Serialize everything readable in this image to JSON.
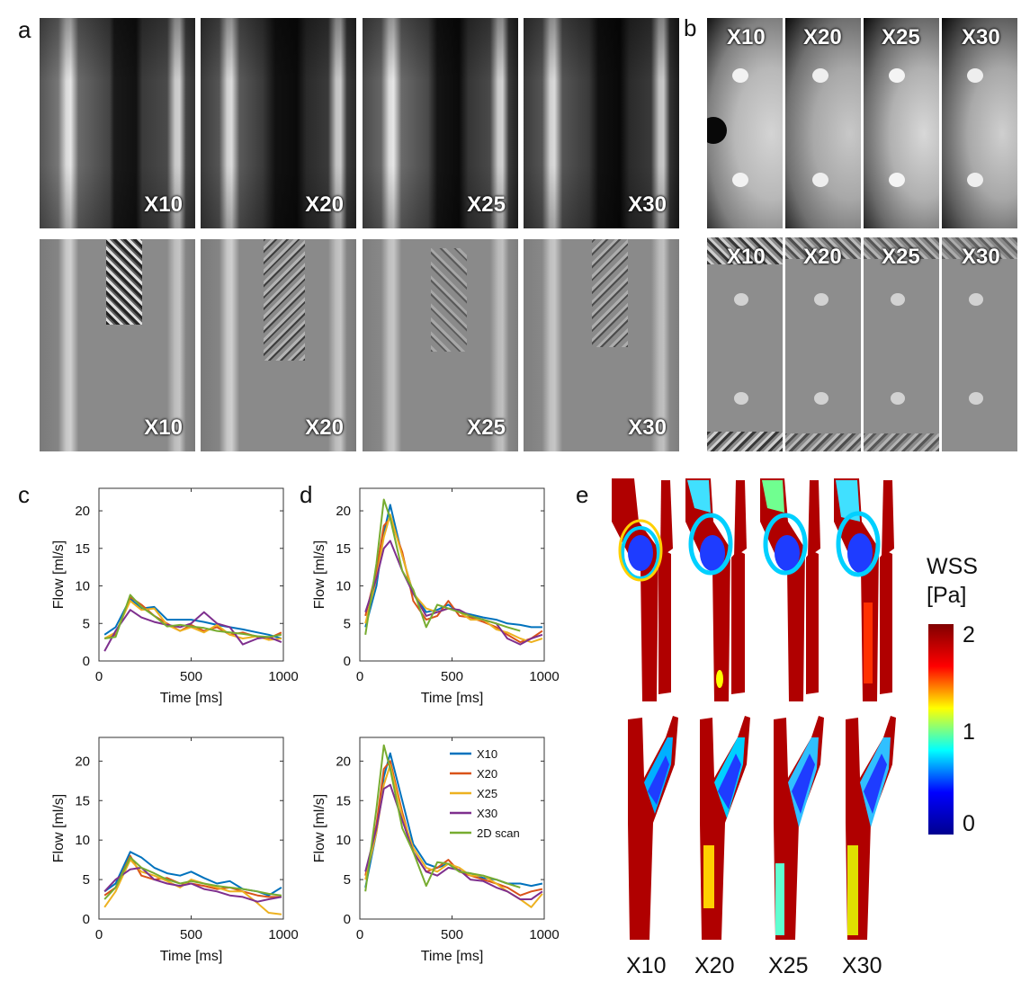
{
  "panels": {
    "a": "a",
    "b": "b",
    "c": "c",
    "d": "d",
    "e": "e"
  },
  "scan_labels": [
    "X10",
    "X20",
    "X25",
    "X30"
  ],
  "legend": [
    "X10",
    "X20",
    "X25",
    "X30",
    "2D scan"
  ],
  "series_colors": [
    "#0072BD",
    "#D95319",
    "#EDB120",
    "#7E2F8E",
    "#77AC30"
  ],
  "colorbar": {
    "title_line1": "WSS",
    "title_line2": "[Pa]",
    "ticks": [
      "2",
      "1",
      "0"
    ],
    "colors": [
      "#800000",
      "#ff0000",
      "#ffff00",
      "#00ffff",
      "#0000ff",
      "#00008f"
    ]
  },
  "chart_data": [
    {
      "id": "c-top",
      "type": "line",
      "xlabel": "Time [ms]",
      "ylabel": "Flow [ml/s]",
      "xlim": [
        0,
        1000
      ],
      "ylim": [
        0,
        23
      ],
      "xticks": [
        "0",
        "500",
        "1000"
      ],
      "yticks": [
        "0",
        "5",
        "10",
        "15",
        "20"
      ],
      "x": [
        30,
        90,
        170,
        230,
        300,
        370,
        440,
        500,
        570,
        640,
        710,
        780,
        860,
        920,
        990
      ],
      "series": [
        {
          "name": "X10",
          "values": [
            3.5,
            4.5,
            8.3,
            7.0,
            7.2,
            5.5,
            5.5,
            5.5,
            5.2,
            4.8,
            4.5,
            4.2,
            3.8,
            3.5,
            3.0
          ]
        },
        {
          "name": "X20",
          "values": [
            3.0,
            3.5,
            8.5,
            7.5,
            6.0,
            5.0,
            4.0,
            4.8,
            4.0,
            4.5,
            3.5,
            3.8,
            3.2,
            3.0,
            3.8
          ]
        },
        {
          "name": "X25",
          "values": [
            3.0,
            3.8,
            8.0,
            6.8,
            7.0,
            4.8,
            4.0,
            4.5,
            3.8,
            4.8,
            3.5,
            3.0,
            3.3,
            2.8,
            3.0
          ]
        },
        {
          "name": "X30",
          "values": [
            1.3,
            4.0,
            6.8,
            5.8,
            5.2,
            4.8,
            4.5,
            5.0,
            6.5,
            5.0,
            4.5,
            2.2,
            3.0,
            3.2,
            2.5
          ]
        },
        {
          "name": "2D scan",
          "values": [
            3.0,
            3.2,
            8.8,
            7.2,
            6.0,
            4.6,
            4.8,
            4.6,
            4.4,
            4.0,
            3.8,
            3.6,
            3.3,
            3.2,
            3.5
          ]
        }
      ]
    },
    {
      "id": "d-top",
      "type": "line",
      "xlabel": "Time [ms]",
      "ylabel": "Flow [ml/s]",
      "xlim": [
        0,
        1000
      ],
      "ylim": [
        0,
        23
      ],
      "xticks": [
        "0",
        "500",
        "1000"
      ],
      "yticks": [
        "0",
        "5",
        "10",
        "15",
        "20"
      ],
      "x": [
        30,
        90,
        130,
        165,
        230,
        290,
        360,
        420,
        480,
        540,
        600,
        670,
        740,
        800,
        870,
        930,
        990
      ],
      "series": [
        {
          "name": "X10",
          "values": [
            4.5,
            10.0,
            17.0,
            20.8,
            14.0,
            9.0,
            6.5,
            6.8,
            7.5,
            6.5,
            6.2,
            5.8,
            5.5,
            5.0,
            4.8,
            4.5,
            4.5
          ]
        },
        {
          "name": "X20",
          "values": [
            6.0,
            12.0,
            18.0,
            19.0,
            14.5,
            8.0,
            5.5,
            6.0,
            8.0,
            6.0,
            5.8,
            5.2,
            4.5,
            3.5,
            2.5,
            3.0,
            4.0
          ]
        },
        {
          "name": "X25",
          "values": [
            5.0,
            11.0,
            16.5,
            19.5,
            14.0,
            9.0,
            7.0,
            6.5,
            7.0,
            6.5,
            5.5,
            5.5,
            4.2,
            3.8,
            3.0,
            2.5,
            3.0
          ]
        },
        {
          "name": "X30",
          "values": [
            6.5,
            11.0,
            15.0,
            16.0,
            12.0,
            9.0,
            6.0,
            6.5,
            7.0,
            6.8,
            6.0,
            5.5,
            5.0,
            3.0,
            2.2,
            3.0,
            3.5
          ]
        },
        {
          "name": "2D scan",
          "values": [
            3.5,
            13.0,
            21.5,
            19.0,
            12.0,
            9.5,
            4.5,
            7.5,
            7.0,
            6.5,
            6.0,
            5.5,
            5.0,
            4.5,
            4.0,
            null,
            null
          ]
        }
      ]
    },
    {
      "id": "c-bottom",
      "type": "line",
      "xlabel": "Time [ms]",
      "ylabel": "Flow [ml/s]",
      "xlim": [
        0,
        1000
      ],
      "ylim": [
        0,
        23
      ],
      "xticks": [
        "0",
        "500",
        "1000"
      ],
      "yticks": [
        "0",
        "5",
        "10",
        "15",
        "20"
      ],
      "x": [
        30,
        90,
        170,
        230,
        300,
        370,
        440,
        500,
        570,
        640,
        710,
        780,
        860,
        920,
        990
      ],
      "series": [
        {
          "name": "X10",
          "values": [
            3.5,
            4.5,
            8.5,
            7.8,
            6.5,
            5.8,
            5.5,
            6.0,
            5.2,
            4.5,
            4.8,
            3.8,
            3.5,
            3.0,
            4.0
          ]
        },
        {
          "name": "X20",
          "values": [
            3.0,
            4.0,
            8.0,
            5.5,
            5.0,
            5.2,
            4.5,
            4.5,
            4.2,
            3.8,
            4.0,
            3.5,
            3.0,
            2.8,
            2.8
          ]
        },
        {
          "name": "X25",
          "values": [
            1.5,
            3.5,
            7.5,
            6.0,
            5.5,
            4.8,
            4.0,
            5.0,
            4.5,
            4.0,
            3.5,
            3.5,
            2.0,
            0.8,
            0.6
          ]
        },
        {
          "name": "X30",
          "values": [
            3.5,
            5.0,
            6.3,
            6.5,
            5.0,
            4.5,
            4.2,
            4.5,
            3.8,
            3.5,
            3.0,
            2.8,
            2.2,
            2.5,
            2.8
          ]
        },
        {
          "name": "2D scan",
          "values": [
            2.5,
            4.0,
            7.8,
            6.5,
            5.8,
            5.0,
            4.5,
            4.8,
            4.5,
            4.2,
            4.0,
            3.8,
            3.5,
            3.2,
            3.0
          ]
        }
      ]
    },
    {
      "id": "d-bottom",
      "type": "line",
      "xlabel": "Time [ms]",
      "ylabel": "Flow [ml/s]",
      "xlim": [
        0,
        1000
      ],
      "ylim": [
        0,
        23
      ],
      "xticks": [
        "0",
        "500",
        "1000"
      ],
      "yticks": [
        "0",
        "5",
        "10",
        "15",
        "20"
      ],
      "x": [
        30,
        90,
        130,
        165,
        230,
        290,
        360,
        420,
        480,
        540,
        600,
        670,
        740,
        800,
        870,
        930,
        990
      ],
      "series": [
        {
          "name": "X10",
          "values": [
            4.0,
            11.0,
            18.0,
            21.0,
            15.0,
            9.5,
            7.0,
            6.5,
            7.0,
            6.0,
            5.8,
            5.2,
            5.0,
            4.5,
            4.5,
            4.2,
            4.5
          ]
        },
        {
          "name": "X20",
          "values": [
            5.5,
            12.0,
            19.0,
            20.0,
            13.5,
            8.5,
            6.0,
            6.5,
            7.5,
            6.0,
            5.5,
            5.0,
            4.5,
            4.0,
            3.0,
            3.5,
            3.8
          ]
        },
        {
          "name": "X25",
          "values": [
            5.0,
            11.0,
            17.0,
            19.5,
            13.0,
            9.0,
            6.5,
            6.0,
            7.0,
            6.5,
            5.5,
            5.5,
            4.5,
            3.5,
            2.5,
            1.5,
            3.2
          ]
        },
        {
          "name": "X30",
          "values": [
            6.0,
            11.5,
            16.5,
            17.0,
            12.5,
            8.5,
            6.0,
            5.5,
            6.5,
            6.2,
            5.0,
            4.8,
            4.0,
            3.5,
            2.5,
            2.5,
            3.5
          ]
        },
        {
          "name": "2D scan",
          "values": [
            3.5,
            14.0,
            22.0,
            19.0,
            11.5,
            8.5,
            4.2,
            7.2,
            7.0,
            6.0,
            5.8,
            5.5,
            5.0,
            4.5,
            4.0,
            null,
            null
          ]
        }
      ]
    }
  ]
}
